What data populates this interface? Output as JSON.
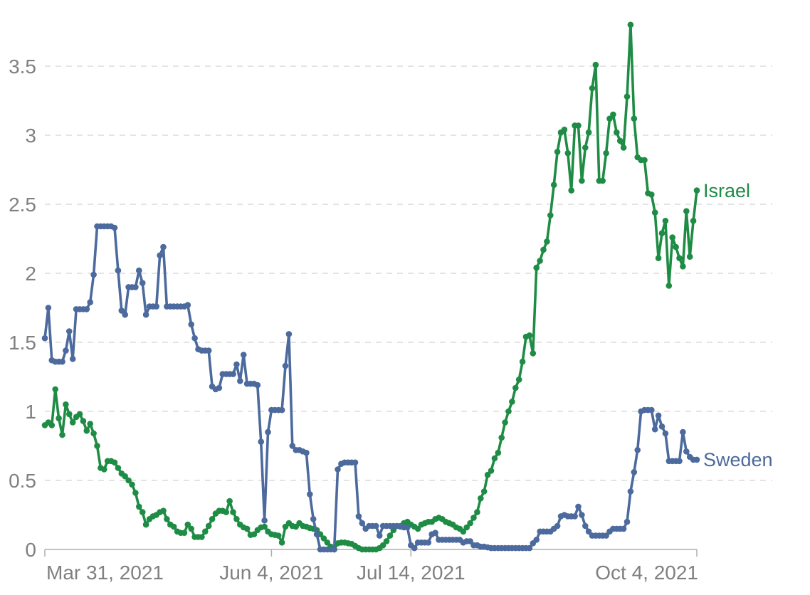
{
  "chart_data": {
    "type": "line",
    "title": "",
    "grid": "horizontal-dashed",
    "legend_position": "line-end-labels",
    "x_axis": {
      "total_days": 187,
      "ticks": [
        {
          "label": "Mar 31, 2021",
          "day": 0
        },
        {
          "label": "Jun 4, 2021",
          "day": 65
        },
        {
          "label": "Jul 14, 2021",
          "day": 105
        },
        {
          "label": "Oct 4, 2021",
          "day": 187
        }
      ]
    },
    "y_axis": {
      "min": 0,
      "max": 3.9,
      "ticks": [
        0,
        0.5,
        1,
        1.5,
        2,
        2.5,
        3,
        3.5
      ],
      "labels": [
        "0",
        "0.5",
        "1",
        "1.5",
        "2",
        "2.5",
        "3",
        "3.5"
      ]
    },
    "series": [
      {
        "name": "Israel",
        "color": "#1f8c45",
        "values": [
          0.9,
          0.92,
          0.9,
          1.16,
          0.95,
          0.83,
          1.05,
          0.98,
          0.92,
          0.96,
          0.98,
          0.93,
          0.86,
          0.91,
          0.84,
          0.75,
          0.59,
          0.58,
          0.64,
          0.64,
          0.63,
          0.59,
          0.55,
          0.53,
          0.5,
          0.47,
          0.41,
          0.31,
          0.27,
          0.18,
          0.22,
          0.24,
          0.25,
          0.27,
          0.28,
          0.22,
          0.18,
          0.165,
          0.13,
          0.12,
          0.12,
          0.18,
          0.15,
          0.09,
          0.09,
          0.09,
          0.13,
          0.17,
          0.22,
          0.26,
          0.28,
          0.28,
          0.27,
          0.35,
          0.27,
          0.22,
          0.18,
          0.16,
          0.15,
          0.105,
          0.11,
          0.14,
          0.16,
          0.165,
          0.13,
          0.11,
          0.105,
          0.1,
          0.05,
          0.165,
          0.19,
          0.17,
          0.165,
          0.19,
          0.17,
          0.165,
          0.155,
          0.15,
          0.14,
          0.11,
          0.08,
          0.05,
          0.02,
          0.0,
          0.045,
          0.05,
          0.05,
          0.045,
          0.04,
          0.025,
          0.01,
          0.0,
          0.0,
          0.0,
          0.0,
          0.0,
          0.01,
          0.03,
          0.06,
          0.1,
          0.14,
          0.17,
          0.165,
          0.19,
          0.2,
          0.18,
          0.165,
          0.15,
          0.18,
          0.19,
          0.2,
          0.2,
          0.22,
          0.23,
          0.22,
          0.2,
          0.19,
          0.18,
          0.16,
          0.15,
          0.13,
          0.16,
          0.19,
          0.23,
          0.27,
          0.37,
          0.42,
          0.54,
          0.57,
          0.66,
          0.7,
          0.81,
          0.92,
          1.0,
          1.07,
          1.17,
          1.23,
          1.36,
          1.54,
          1.55,
          1.42,
          2.04,
          2.09,
          2.17,
          2.23,
          2.42,
          2.64,
          2.88,
          3.02,
          3.04,
          2.87,
          2.6,
          3.07,
          3.07,
          2.67,
          2.91,
          3.02,
          3.34,
          3.51,
          2.67,
          2.67,
          2.87,
          3.12,
          3.15,
          3.02,
          2.96,
          2.91,
          3.28,
          3.8,
          3.12,
          2.84,
          2.82,
          2.82,
          2.58,
          2.57,
          2.44,
          2.11,
          2.29,
          2.38,
          1.91,
          2.26,
          2.19,
          2.11,
          2.05,
          2.45,
          2.12,
          2.38,
          2.6
        ]
      },
      {
        "name": "Sweden",
        "color": "#4c6a9d",
        "values": [
          1.53,
          1.75,
          1.37,
          1.36,
          1.36,
          1.36,
          1.44,
          1.58,
          1.38,
          1.74,
          1.74,
          1.74,
          1.74,
          1.79,
          1.99,
          2.34,
          2.34,
          2.34,
          2.34,
          2.34,
          2.33,
          2.02,
          1.73,
          1.7,
          1.9,
          1.9,
          1.9,
          2.02,
          1.93,
          1.7,
          1.76,
          1.76,
          1.76,
          2.13,
          2.19,
          1.76,
          1.76,
          1.76,
          1.76,
          1.76,
          1.76,
          1.77,
          1.63,
          1.53,
          1.45,
          1.44,
          1.44,
          1.44,
          1.18,
          1.16,
          1.17,
          1.27,
          1.27,
          1.27,
          1.27,
          1.34,
          1.22,
          1.41,
          1.2,
          1.2,
          1.2,
          1.19,
          0.78,
          0.21,
          0.85,
          1.01,
          1.01,
          1.01,
          1.01,
          1.33,
          1.56,
          0.75,
          0.72,
          0.72,
          0.71,
          0.7,
          0.4,
          0.22,
          0.11,
          0.0,
          0.0,
          0.0,
          0.0,
          0.0,
          0.58,
          0.62,
          0.63,
          0.63,
          0.63,
          0.63,
          0.24,
          0.19,
          0.15,
          0.17,
          0.17,
          0.17,
          0.1,
          0.17,
          0.17,
          0.17,
          0.17,
          0.17,
          0.17,
          0.16,
          0.16,
          0.03,
          0.01,
          0.05,
          0.05,
          0.05,
          0.05,
          0.11,
          0.12,
          0.07,
          0.07,
          0.07,
          0.07,
          0.07,
          0.07,
          0.07,
          0.05,
          0.06,
          0.06,
          0.03,
          0.03,
          0.02,
          0.02,
          0.015,
          0.01,
          0.01,
          0.01,
          0.01,
          0.01,
          0.01,
          0.01,
          0.01,
          0.01,
          0.01,
          0.01,
          0.01,
          0.045,
          0.07,
          0.13,
          0.13,
          0.13,
          0.13,
          0.15,
          0.17,
          0.24,
          0.25,
          0.24,
          0.24,
          0.24,
          0.31,
          0.25,
          0.17,
          0.13,
          0.1,
          0.1,
          0.1,
          0.1,
          0.1,
          0.13,
          0.15,
          0.15,
          0.15,
          0.15,
          0.2,
          0.42,
          0.56,
          0.72,
          1.0,
          1.01,
          1.01,
          1.01,
          0.87,
          0.97,
          0.89,
          0.84,
          0.64,
          0.64,
          0.64,
          0.64,
          0.85,
          0.71,
          0.67,
          0.65,
          0.65
        ]
      }
    ]
  },
  "colors": {
    "background": "#ffffff",
    "grid": "#dcdcdc",
    "axis": "#adadad",
    "tick_text": "#808080",
    "israel": "#1f8c45",
    "sweden": "#4c6a9d"
  }
}
